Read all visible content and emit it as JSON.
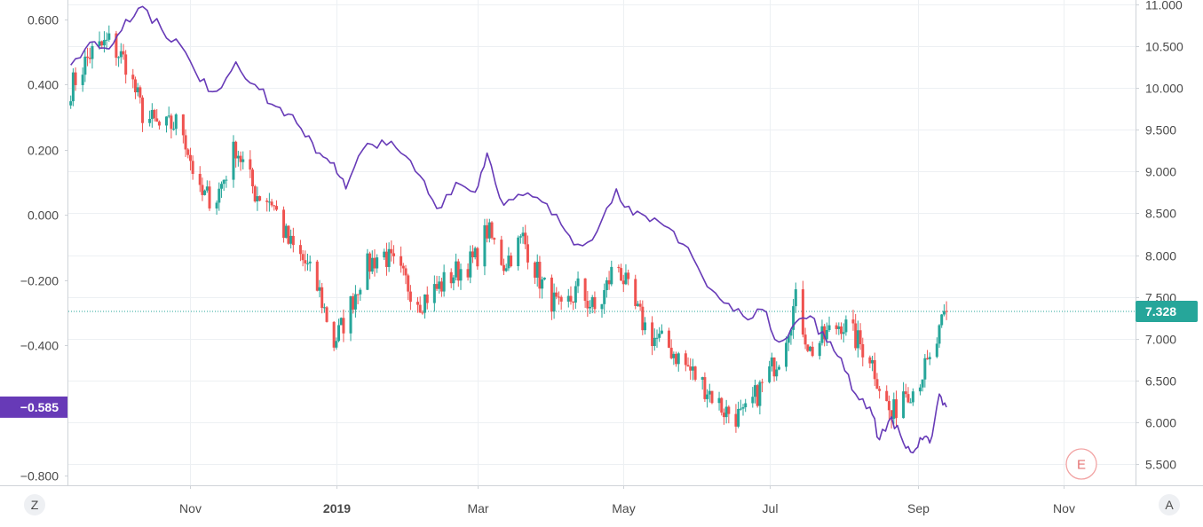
{
  "chart_data": {
    "type": "line",
    "x_ticks": [
      "Nov",
      "2019",
      "Mar",
      "May",
      "Jul",
      "Sep",
      "Nov"
    ],
    "left_axis": {
      "ticks": [
        "0.600",
        "0.400",
        "0.200",
        "0.000",
        "−0.200",
        "−0.400",
        "−0.600",
        "−0.800"
      ],
      "ylim": [
        -0.83,
        0.66
      ]
    },
    "right_axis": {
      "ticks": [
        "11.000",
        "10.500",
        "10.000",
        "9.500",
        "9.000",
        "8.500",
        "8.000",
        "7.500",
        "7.000",
        "6.500",
        "6.000",
        "5.500"
      ],
      "ylim": [
        5.25,
        11.05
      ]
    },
    "series": [
      {
        "kind": "line",
        "axis": "left",
        "color": "#673ab7",
        "last_value_label": "−0.585",
        "points": [
          [
            "2018-09-12",
            0.46
          ],
          [
            "2018-09-20",
            0.53
          ],
          [
            "2018-09-28",
            0.51
          ],
          [
            "2018-10-05",
            0.6
          ],
          [
            "2018-10-12",
            0.64
          ],
          [
            "2018-10-20",
            0.57
          ],
          [
            "2018-10-28",
            0.52
          ],
          [
            "2018-11-05",
            0.41
          ],
          [
            "2018-11-12",
            0.38
          ],
          [
            "2018-11-20",
            0.47
          ],
          [
            "2018-11-28",
            0.4
          ],
          [
            "2018-12-05",
            0.34
          ],
          [
            "2018-12-12",
            0.31
          ],
          [
            "2018-12-19",
            0.24
          ],
          [
            "2018-12-25",
            0.19
          ],
          [
            "2018-12-31",
            0.16
          ],
          [
            "2019-01-05",
            0.08
          ],
          [
            "2019-01-12",
            0.2
          ],
          [
            "2019-01-20",
            0.23
          ],
          [
            "2019-01-28",
            0.19
          ],
          [
            "2019-02-05",
            0.12
          ],
          [
            "2019-02-12",
            0.02
          ],
          [
            "2019-02-20",
            0.1
          ],
          [
            "2019-02-28",
            0.07
          ],
          [
            "2019-03-05",
            0.19
          ],
          [
            "2019-03-12",
            0.03
          ],
          [
            "2019-03-20",
            0.06
          ],
          [
            "2019-03-28",
            0.04
          ],
          [
            "2019-04-05",
            -0.03
          ],
          [
            "2019-04-12",
            -0.09
          ],
          [
            "2019-04-20",
            -0.05
          ],
          [
            "2019-04-28",
            0.08
          ],
          [
            "2019-05-05",
            0.0
          ],
          [
            "2019-05-12",
            -0.02
          ],
          [
            "2019-05-20",
            -0.04
          ],
          [
            "2019-05-28",
            -0.1
          ],
          [
            "2019-06-05",
            -0.22
          ],
          [
            "2019-06-12",
            -0.27
          ],
          [
            "2019-06-20",
            -0.31
          ],
          [
            "2019-06-28",
            -0.29
          ],
          [
            "2019-07-05",
            -0.39
          ],
          [
            "2019-07-12",
            -0.33
          ],
          [
            "2019-07-18",
            -0.31
          ],
          [
            "2019-07-25",
            -0.39
          ],
          [
            "2019-07-31",
            -0.44
          ],
          [
            "2019-08-06",
            -0.55
          ],
          [
            "2019-08-12",
            -0.59
          ],
          [
            "2019-08-16",
            -0.69
          ],
          [
            "2019-08-21",
            -0.62
          ],
          [
            "2019-08-26",
            -0.7
          ],
          [
            "2019-08-30",
            -0.73
          ],
          [
            "2019-09-03",
            -0.69
          ],
          [
            "2019-09-06",
            -0.7
          ],
          [
            "2019-09-10",
            -0.55
          ],
          [
            "2019-09-13",
            -0.59
          ]
        ]
      },
      {
        "kind": "candlestick",
        "axis": "right",
        "up_color": "#26a69a",
        "down_color": "#ef5350",
        "last_value_label": "7.328",
        "price_line": 7.328,
        "points": [
          [
            "2018-09-12",
            10.0
          ],
          [
            "2018-09-20",
            10.4
          ],
          [
            "2018-09-28",
            10.55
          ],
          [
            "2018-10-05",
            10.3
          ],
          [
            "2018-10-12",
            9.7
          ],
          [
            "2018-10-20",
            9.5
          ],
          [
            "2018-10-28",
            9.6
          ],
          [
            "2018-11-05",
            8.7
          ],
          [
            "2018-11-12",
            8.7
          ],
          [
            "2018-11-20",
            9.3
          ],
          [
            "2018-11-28",
            8.75
          ],
          [
            "2018-12-05",
            8.65
          ],
          [
            "2018-12-12",
            8.15
          ],
          [
            "2018-12-19",
            7.9
          ],
          [
            "2018-12-25",
            7.55
          ],
          [
            "2018-12-31",
            6.95
          ],
          [
            "2019-01-05",
            7.25
          ],
          [
            "2019-01-12",
            7.8
          ],
          [
            "2019-01-20",
            8.05
          ],
          [
            "2019-01-28",
            7.75
          ],
          [
            "2019-02-05",
            7.45
          ],
          [
            "2019-02-12",
            7.6
          ],
          [
            "2019-02-20",
            7.8
          ],
          [
            "2019-02-28",
            7.95
          ],
          [
            "2019-03-05",
            8.3
          ],
          [
            "2019-03-12",
            7.9
          ],
          [
            "2019-03-20",
            8.2
          ],
          [
            "2019-03-28",
            7.65
          ],
          [
            "2019-04-05",
            7.3
          ],
          [
            "2019-04-12",
            7.6
          ],
          [
            "2019-04-20",
            7.3
          ],
          [
            "2019-04-28",
            7.95
          ],
          [
            "2019-05-05",
            7.4
          ],
          [
            "2019-05-12",
            7.05
          ],
          [
            "2019-05-20",
            6.9
          ],
          [
            "2019-05-28",
            6.65
          ],
          [
            "2019-06-05",
            6.4
          ],
          [
            "2019-06-12",
            6.15
          ],
          [
            "2019-06-20",
            6.05
          ],
          [
            "2019-06-28",
            6.45
          ],
          [
            "2019-07-05",
            6.8
          ],
          [
            "2019-07-12",
            7.45
          ],
          [
            "2019-07-18",
            6.85
          ],
          [
            "2019-07-25",
            7.05
          ],
          [
            "2019-07-31",
            7.2
          ],
          [
            "2019-08-06",
            7.0
          ],
          [
            "2019-08-12",
            6.8
          ],
          [
            "2019-08-16",
            6.45
          ],
          [
            "2019-08-21",
            6.05
          ],
          [
            "2019-08-26",
            6.4
          ],
          [
            "2019-08-30",
            6.4
          ],
          [
            "2019-09-03",
            6.6
          ],
          [
            "2019-09-06",
            6.7
          ],
          [
            "2019-09-10",
            7.05
          ],
          [
            "2019-09-13",
            7.33
          ]
        ]
      }
    ],
    "grid": true
  },
  "toolbar": {
    "left_button": "Z",
    "right_button": "A"
  },
  "event_marker": {
    "label": "E"
  },
  "colors": {
    "grid": "#edf0f3",
    "axis_text": "#4a4a4a",
    "price_line": "#26a69a"
  }
}
